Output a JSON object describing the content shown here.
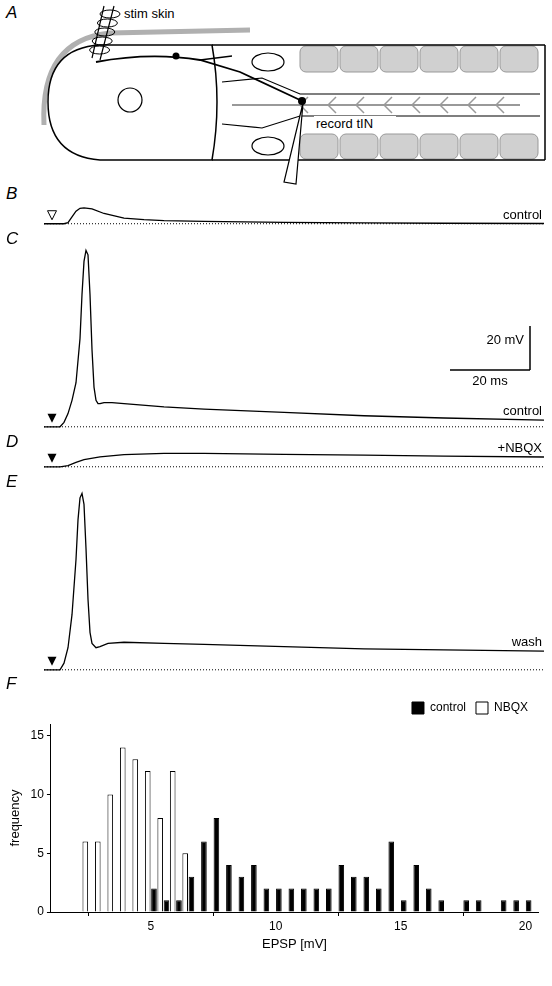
{
  "diagram": {
    "panel": "A",
    "labels": {
      "stimulus": "stim skin",
      "recording": "record tIN"
    }
  },
  "chart_data": [
    {
      "type": "line",
      "panel": "B",
      "label": "control",
      "color": "#000000",
      "tick_labels": false,
      "stimulus": {
        "x": 2,
        "marker": "triangle_open"
      },
      "baseline": 0,
      "xlim": [
        0,
        125
      ],
      "ylim": [
        -1,
        10
      ],
      "x": [
        0,
        2,
        5,
        6,
        7,
        8,
        9,
        10,
        12,
        15,
        20,
        25,
        30,
        40,
        60,
        80,
        100,
        125
      ],
      "values": [
        0,
        0,
        0,
        0.5,
        3,
        5.5,
        6.8,
        7,
        6.5,
        4.5,
        2.5,
        1.8,
        1.4,
        1,
        0.6,
        0.4,
        0.2,
        0.1
      ]
    },
    {
      "type": "line",
      "panel": "C",
      "label": "control",
      "color": "#000000",
      "tick_labels": false,
      "stimulus": {
        "x": 2,
        "marker": "triangle_filled"
      },
      "baseline": 0,
      "scale_bar": {
        "x": 20,
        "x_label": "20 ms",
        "y": 20,
        "y_label": "20 mV"
      },
      "xlim": [
        0,
        125
      ],
      "ylim": [
        -1,
        82
      ],
      "x": [
        0,
        2,
        4,
        5,
        6,
        7,
        8,
        9,
        9.5,
        10,
        10.5,
        11,
        11.5,
        12,
        12.5,
        13,
        13.5,
        14,
        15,
        17,
        20,
        30,
        40,
        60,
        80,
        100,
        125
      ],
      "values": [
        0,
        0,
        0,
        2,
        6,
        12,
        20,
        40,
        60,
        75,
        80,
        78,
        60,
        35,
        18,
        12,
        10.5,
        10.5,
        11,
        11,
        10.5,
        9,
        8,
        6.5,
        5,
        4,
        3
      ]
    },
    {
      "type": "line",
      "panel": "D",
      "label": "+NBQX",
      "color": "#000000",
      "tick_labels": false,
      "stimulus": {
        "x": 2,
        "marker": "triangle_filled"
      },
      "baseline": 0,
      "xlim": [
        0,
        125
      ],
      "ylim": [
        -1,
        8
      ],
      "x": [
        0,
        2,
        4,
        6,
        8,
        10,
        14,
        20,
        30,
        40,
        60,
        80,
        100,
        125
      ],
      "values": [
        0,
        0,
        0,
        0.5,
        2,
        3.2,
        4.5,
        5.5,
        6,
        6,
        5.6,
        5.2,
        4.8,
        4.4
      ]
    },
    {
      "type": "line",
      "panel": "E",
      "label": "wash",
      "color": "#000000",
      "tick_labels": false,
      "stimulus": {
        "x": 2,
        "marker": "triangle_filled"
      },
      "baseline": 0,
      "xlim": [
        0,
        125
      ],
      "ylim": [
        -1,
        82
      ],
      "x": [
        0,
        2,
        4,
        5,
        6,
        7,
        8,
        8.5,
        9,
        9.5,
        10,
        10.5,
        11,
        11.5,
        12,
        13,
        14,
        16,
        20,
        30,
        40,
        60,
        80,
        100,
        125
      ],
      "values": [
        0,
        0,
        0,
        3,
        10,
        25,
        50,
        68,
        78,
        80,
        75,
        55,
        32,
        17,
        12,
        10,
        10.5,
        12,
        12.5,
        12,
        11.5,
        10.5,
        9.5,
        9,
        8.5
      ]
    },
    {
      "type": "histogram",
      "panel": "F",
      "x_label": "EPSP [mV]",
      "y_label": "frequency",
      "xlim": [
        1,
        20.5
      ],
      "ylim": [
        0,
        16
      ],
      "xticks": [
        5,
        10,
        15,
        20
      ],
      "yticks": [
        0,
        5,
        10,
        15
      ],
      "grid": false,
      "legend": "top right",
      "series": [
        {
          "name": "control",
          "color": "#000000",
          "bins": [
            5,
            5.5,
            6,
            6.5,
            7,
            7.5,
            8,
            8.5,
            9,
            9.5,
            10,
            10.5,
            11,
            11.5,
            12,
            12.5,
            13,
            13.5,
            14,
            14.5,
            15,
            15.5,
            16,
            16.5,
            17,
            17.5,
            18,
            18.5,
            19,
            19.5,
            20,
            20.5
          ],
          "values": [
            2,
            1,
            1,
            3,
            6,
            8,
            4,
            3,
            4,
            2,
            2,
            2,
            2,
            2,
            2,
            4,
            3,
            3,
            2,
            6,
            1,
            4,
            2,
            1,
            0,
            1,
            1,
            0,
            1,
            1,
            1
          ]
        },
        {
          "name": "NBQX",
          "color": "#ffffff",
          "bins": [
            2,
            2.5,
            3,
            3.5,
            4,
            4.5,
            5,
            5.5,
            6,
            6.5
          ],
          "values": [
            6,
            6,
            10,
            14,
            13,
            12,
            8,
            12,
            5
          ]
        }
      ]
    }
  ]
}
